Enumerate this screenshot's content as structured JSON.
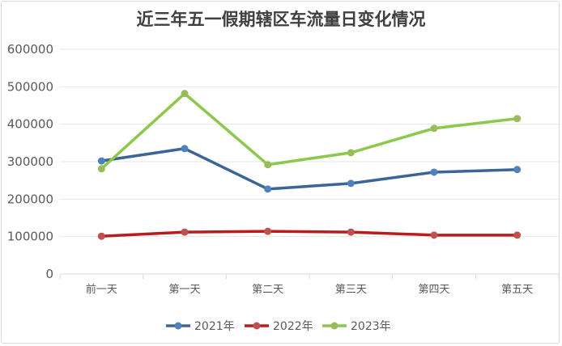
{
  "chart_data": {
    "type": "line",
    "title": "近三年五一假期辖区车流量日变化情况",
    "xlabel": "",
    "ylabel": "",
    "categories": [
      "前一天",
      "第一天",
      "第二天",
      "第三天",
      "第四天",
      "第五天"
    ],
    "ylim": [
      0,
      600000
    ],
    "yticks": [
      "0",
      "100000",
      "200000",
      "300000",
      "400000",
      "500000",
      "600000"
    ],
    "grid": true,
    "legend": "bottom",
    "series": [
      {
        "name": "2021年",
        "color": "#3a6596",
        "marker": "#4f81bd",
        "values": [
          302000,
          335000,
          227000,
          242000,
          272000,
          279000
        ]
      },
      {
        "name": "2022年",
        "color": "#b81c1c",
        "marker": "#c0504d",
        "values": [
          101000,
          112000,
          114000,
          112000,
          104000,
          104000
        ]
      },
      {
        "name": "2023年",
        "color": "#8cc84b",
        "marker": "#9bbb59",
        "values": [
          281000,
          482000,
          292000,
          324000,
          389000,
          415000
        ]
      }
    ]
  }
}
